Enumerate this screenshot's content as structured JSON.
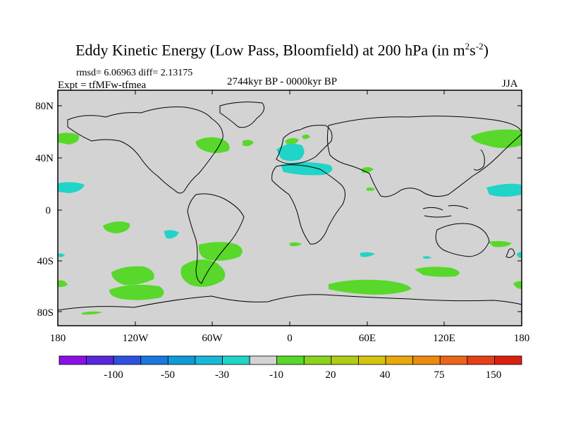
{
  "title_main": "Eddy Kinetic Energy (Low Pass, Bloomfield) at 200 hPa (in m",
  "title_sup1": "2",
  "title_mid": "s",
  "title_sup2": "-2",
  "title_end": ")",
  "stats": "rmsd= 6.06963 diff= 2.13175",
  "experiment": "Expt = tfMFw-tfmea",
  "period": "2744kyr BP - 0000kyr BP",
  "season": "JJA",
  "map": {
    "lat_labels": [
      "80N",
      "40N",
      "0",
      "40S",
      "80S"
    ],
    "lon_labels": [
      "180",
      "120W",
      "60W",
      "0",
      "60E",
      "120E",
      "180"
    ],
    "background_color": "#d3d3d3"
  },
  "colorbar": {
    "labels": [
      "-100",
      "-50",
      "-30",
      "-10",
      "20",
      "40",
      "75",
      "150"
    ],
    "colors": [
      "#8a10e6",
      "#5a28dc",
      "#3050e0",
      "#1878e0",
      "#109ad8",
      "#1ab8d8",
      "#20d4c8",
      "#d3d3d3",
      "#58d82a",
      "#8ad21e",
      "#b0cc14",
      "#d4c410",
      "#e8a80c",
      "#ee8a10",
      "#e8661a",
      "#e44018",
      "#dc2010"
    ]
  }
}
